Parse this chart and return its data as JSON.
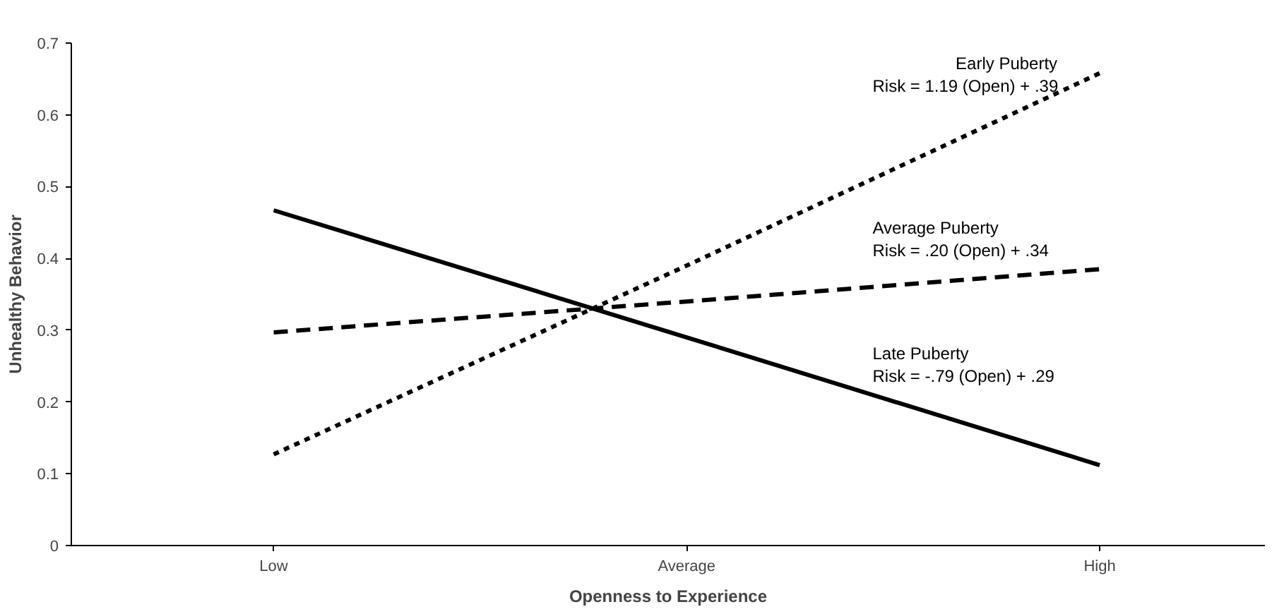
{
  "chart_data": {
    "type": "line",
    "xlabel": "Openness to Experience",
    "ylabel": "Unhealthy Behavior",
    "categories": [
      "Low",
      "Average",
      "High"
    ],
    "ylim": [
      0,
      0.7
    ],
    "yticks": [
      0,
      0.1,
      0.2,
      0.3,
      0.4,
      0.5,
      0.6,
      0.7
    ],
    "grid": false,
    "legend": false,
    "marker": "none",
    "series": [
      {
        "name": "Early Puberty",
        "color": "#000000",
        "line_style": "dotted",
        "values": [
          0.127,
          0.39,
          0.658
        ]
      },
      {
        "name": "Average  Puberty",
        "color": "#000000",
        "line_style": "dashed",
        "values": [
          0.297,
          0.34,
          0.385
        ]
      },
      {
        "name": "Late Puberty",
        "color": "#000000",
        "line_style": "solid",
        "values": [
          0.467,
          0.29,
          0.112
        ]
      }
    ],
    "annotations": [
      "Risk = 1.19 (Open) + .39",
      "Risk = .20 (Open) + .34",
      "Risk = -.79 (Open) + .29"
    ]
  }
}
